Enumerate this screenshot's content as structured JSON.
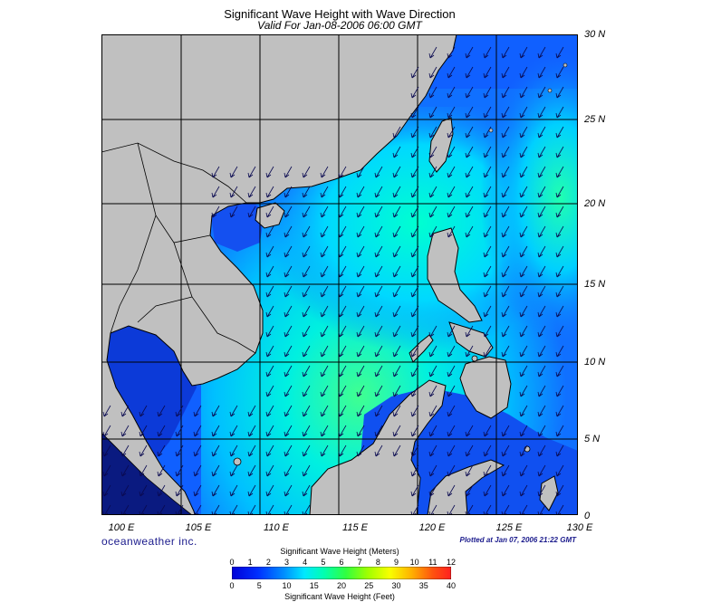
{
  "title": "Significant Wave Height with Wave Direction",
  "subtitle": "Valid For Jan-08-2006 06:00 GMT",
  "brand": "oceanweather inc.",
  "plotted": "Plotted at Jan 07, 2006 21:22 GMT",
  "lat_labels": [
    "30 N",
    "25 N",
    "20 N",
    "15 N",
    "10 N",
    "5 N",
    "0"
  ],
  "lon_labels": [
    "100 E",
    "105 E",
    "110 E",
    "115 E",
    "120 E",
    "125 E",
    "130 E"
  ],
  "colorbar": {
    "meters_title": "Significant Wave Height (Meters)",
    "feet_title": "Significant Wave Height (Feet)",
    "meters_ticks": [
      "0",
      "1",
      "2",
      "3",
      "4",
      "5",
      "6",
      "7",
      "8",
      "9",
      "10",
      "11",
      "12"
    ],
    "feet_ticks": [
      "0",
      "5",
      "10",
      "15",
      "20",
      "25",
      "30",
      "35",
      "40"
    ]
  },
  "colors": {
    "land": "#c0c0c0",
    "deep_blue": "#0000e0",
    "blue": "#1060ff",
    "cyan": "#00e0ff",
    "teal": "#00ffc0",
    "green": "#40ff80"
  }
}
